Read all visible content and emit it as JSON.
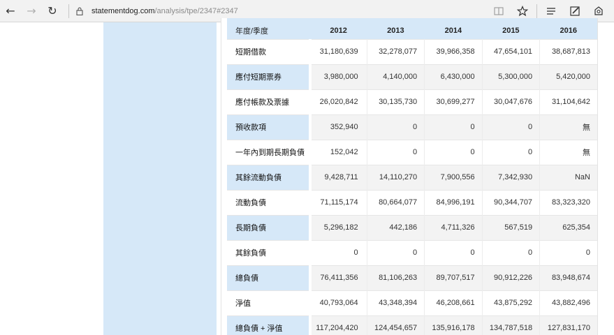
{
  "browser": {
    "url_host": "statementdog.com",
    "url_path": "/analysis/tpe/2347#2347",
    "back_icon": "←",
    "forward_icon": "→",
    "refresh_icon": "↻"
  },
  "table": {
    "header_label": "年度/季度",
    "years": [
      "2012",
      "2013",
      "2014",
      "2015",
      "2016"
    ],
    "rows": [
      {
        "label": "短期借款",
        "values": [
          "31,180,639",
          "32,278,077",
          "39,966,358",
          "47,654,101",
          "38,687,813"
        ]
      },
      {
        "label": "應付短期票券",
        "values": [
          "3,980,000",
          "4,140,000",
          "6,430,000",
          "5,300,000",
          "5,420,000"
        ]
      },
      {
        "label": "應付帳款及票據",
        "values": [
          "26,020,842",
          "30,135,730",
          "30,699,277",
          "30,047,676",
          "31,104,642"
        ]
      },
      {
        "label": "預收款項",
        "values": [
          "352,940",
          "0",
          "0",
          "0",
          "無"
        ]
      },
      {
        "label": "一年內到期長期負債",
        "values": [
          "152,042",
          "0",
          "0",
          "0",
          "無"
        ]
      },
      {
        "label": "其餘流動負債",
        "values": [
          "9,428,711",
          "14,110,270",
          "7,900,556",
          "7,342,930",
          "NaN"
        ]
      },
      {
        "label": "流動負債",
        "values": [
          "71,115,174",
          "80,664,077",
          "84,996,191",
          "90,344,707",
          "83,323,320"
        ]
      },
      {
        "label": "長期負債",
        "values": [
          "5,296,182",
          "442,186",
          "4,711,326",
          "567,519",
          "625,354"
        ]
      },
      {
        "label": "其餘負債",
        "values": [
          "0",
          "0",
          "0",
          "0",
          "0"
        ]
      },
      {
        "label": "總負債",
        "values": [
          "76,411,356",
          "81,106,263",
          "89,707,517",
          "90,912,226",
          "83,948,674"
        ]
      },
      {
        "label": "淨值",
        "values": [
          "40,793,064",
          "43,348,394",
          "46,208,661",
          "43,875,292",
          "43,882,496"
        ]
      },
      {
        "label": "總負債 + 淨值",
        "values": [
          "117,204,420",
          "124,454,657",
          "135,916,178",
          "134,787,518",
          "127,831,170"
        ]
      }
    ]
  }
}
